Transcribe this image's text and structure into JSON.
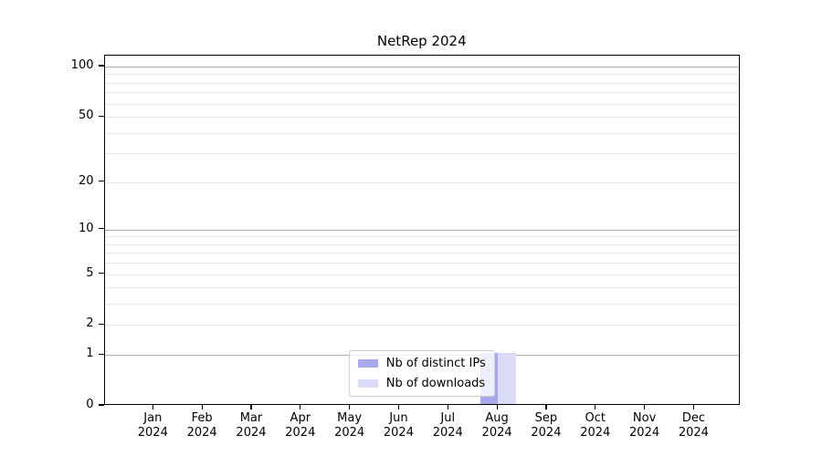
{
  "chart_data": {
    "type": "bar",
    "title": "NetRep 2024",
    "categories": [
      "Jan 2024",
      "Feb 2024",
      "Mar 2024",
      "Apr 2024",
      "May 2024",
      "Jun 2024",
      "Jul 2024",
      "Aug 2024",
      "Sep 2024",
      "Oct 2024",
      "Nov 2024",
      "Dec 2024"
    ],
    "series": [
      {
        "name": "Nb of distinct IPs",
        "color": "#a8a8ee",
        "values": [
          0,
          0,
          0,
          0,
          0,
          0,
          0,
          1,
          0,
          0,
          0,
          0
        ]
      },
      {
        "name": "Nb of downloads",
        "color": "#dbdbf8",
        "values": [
          0,
          0,
          0,
          0,
          0,
          0,
          0,
          1,
          0,
          0,
          0,
          0
        ]
      }
    ],
    "xlabel": "",
    "ylabel": "",
    "y_axis": {
      "scale": "log1p",
      "ticks": [
        0,
        1,
        2,
        5,
        10,
        20,
        50,
        100
      ],
      "major_gridlines": [
        1,
        10,
        100
      ],
      "minor_gridlines": [
        2,
        3,
        4,
        5,
        6,
        7,
        8,
        9,
        20,
        30,
        40,
        50,
        60,
        70,
        80,
        90
      ],
      "ylim": [
        0,
        117
      ]
    },
    "grid": true,
    "legend_position": "lower center",
    "colors": {
      "major_grid": "#b0b0b0",
      "minor_grid": "#e9e9e9",
      "axis": "#000000"
    }
  }
}
